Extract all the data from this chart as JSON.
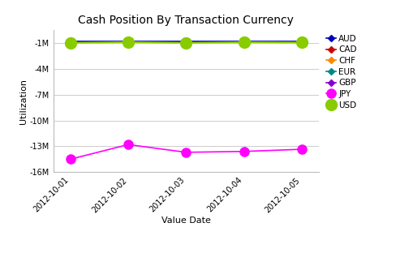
{
  "title": "Cash Position By Transaction Currency",
  "xlabel": "Value Date",
  "ylabel": "Utilization",
  "dates": [
    "2012-10-01",
    "2012-10-02",
    "2012-10-03",
    "2012-10-04",
    "2012-10-05"
  ],
  "series": {
    "AUD": {
      "values": [
        -820000,
        -820000,
        -820000,
        -820000,
        -820000
      ],
      "color": "#0000bb",
      "marker": "D",
      "markersize": 4,
      "linewidth": 1.2,
      "zorder": 6
    },
    "CAD": {
      "values": [
        -840000,
        -840000,
        -840000,
        -840000,
        -840000
      ],
      "color": "#cc0000",
      "marker": "D",
      "markersize": 4,
      "linewidth": 1.2,
      "zorder": 5
    },
    "CHF": {
      "values": [
        -860000,
        -860000,
        -860000,
        -860000,
        -860000
      ],
      "color": "#ff8800",
      "marker": "D",
      "markersize": 4,
      "linewidth": 1.2,
      "zorder": 4
    },
    "EUR": {
      "values": [
        -880000,
        -880000,
        -880000,
        -880000,
        -880000
      ],
      "color": "#008888",
      "marker": "D",
      "markersize": 4,
      "linewidth": 1.2,
      "zorder": 3
    },
    "GBP": {
      "values": [
        -900000,
        -900000,
        -900000,
        -900000,
        -900000
      ],
      "color": "#8800cc",
      "marker": "D",
      "markersize": 4,
      "linewidth": 1.2,
      "zorder": 2
    },
    "JPY": {
      "values": [
        -14500000,
        -12800000,
        -13700000,
        -13600000,
        -13350000
      ],
      "color": "#ff00ff",
      "marker": "o",
      "markersize": 8,
      "linewidth": 1.2,
      "zorder": 7
    },
    "USD": {
      "values": [
        -950000,
        -870000,
        -950000,
        -880000,
        -910000
      ],
      "color": "#88cc00",
      "marker": "o",
      "markersize": 10,
      "linewidth": 1.5,
      "zorder": 8
    }
  },
  "ylim": [
    -16000000,
    500000
  ],
  "yticks": [
    -16000000,
    -13000000,
    -10000000,
    -7000000,
    -4000000,
    -1000000
  ],
  "ytick_labels": [
    "-16M",
    "-13M",
    "-10M",
    "-7M",
    "-4M",
    "-1M"
  ],
  "background_color": "#ffffff",
  "grid_color": "#cccccc",
  "title_fontsize": 10,
  "axis_label_fontsize": 8,
  "tick_fontsize": 7,
  "legend_fontsize": 7.5
}
